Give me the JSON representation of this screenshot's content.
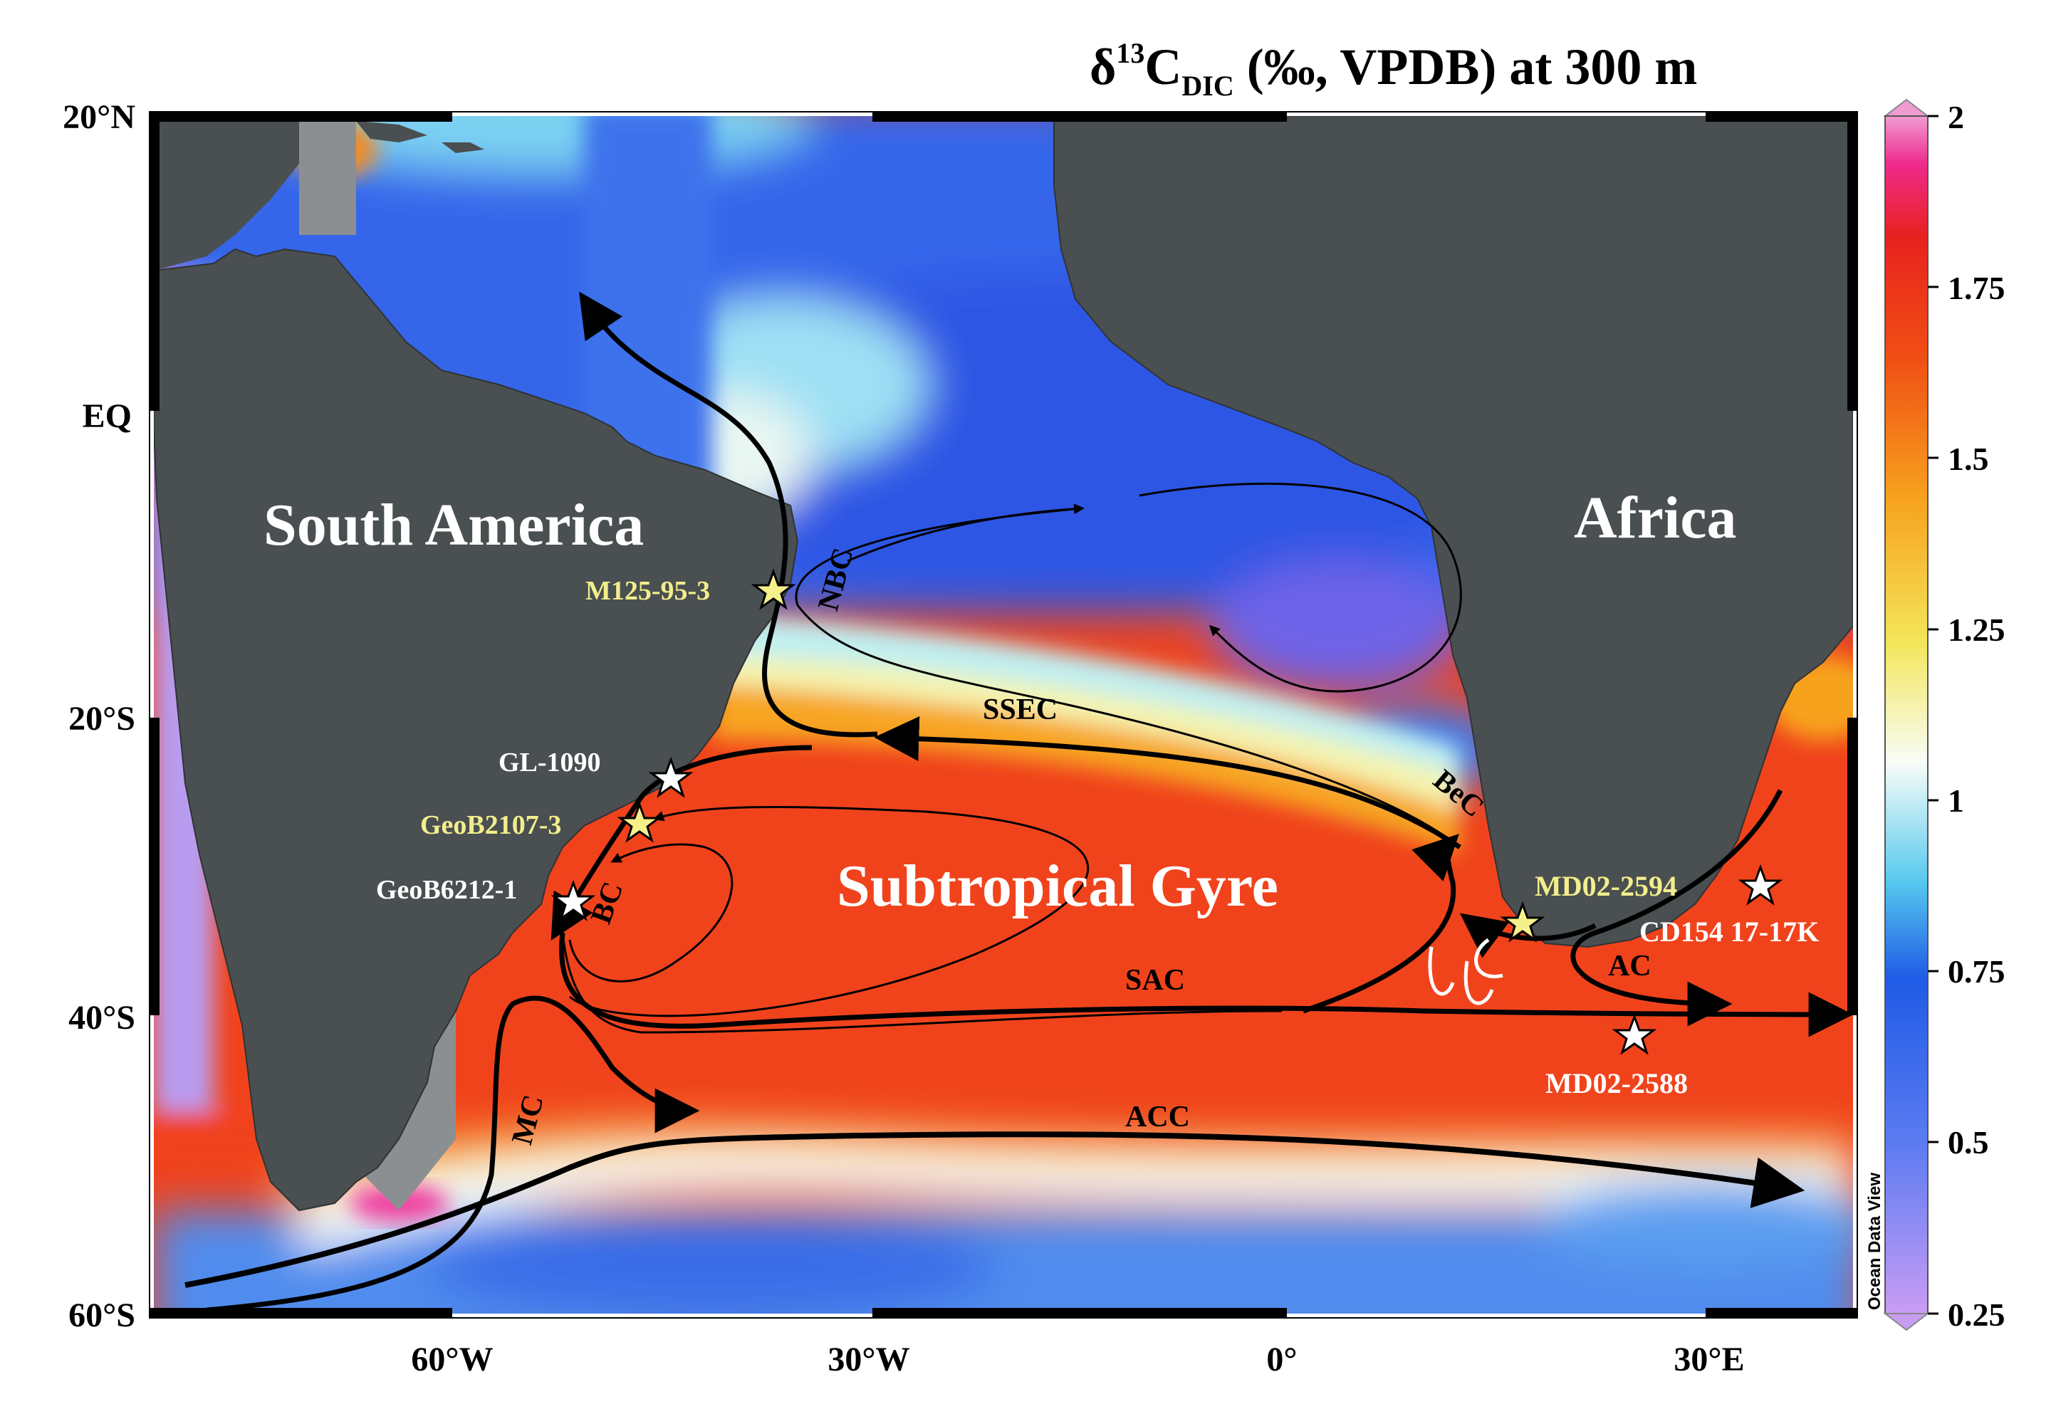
{
  "title": {
    "prefix": "δ",
    "superscript": "13",
    "symbol": "C",
    "subscript": "DIC",
    "suffix": " (‰, VPDB) at 300 m"
  },
  "lat_ticks": [
    "20°N",
    "EQ",
    "20°S",
    "40°S",
    "60°S"
  ],
  "lon_ticks": [
    "60°W",
    "30°W",
    "0°",
    "30°E"
  ],
  "colorbar": {
    "ticks": [
      "2",
      "1.75",
      "1.5",
      "1.25",
      "1",
      "0.75",
      "0.5",
      "0.25"
    ],
    "range": [
      0.25,
      2.0
    ],
    "colormap_stops": [
      "#c99cf4",
      "#5d7cf2",
      "#1f5be6",
      "#56c8ee",
      "#f8fdf8",
      "#f3e65a",
      "#f7a21e",
      "#f04d14",
      "#e8221e",
      "#ee2a8c",
      "#f09bd2"
    ]
  },
  "watermark": "Ocean Data View",
  "continents": {
    "south_america": "South America",
    "africa": "Africa"
  },
  "gyre_label": "Subtropical Gyre",
  "current_labels": {
    "nbc": "NBC",
    "ssec": "SSEC",
    "bec": "BeC",
    "bc": "BC",
    "sac": "SAC",
    "acc": "ACC",
    "ac": "AC",
    "mc": "MC"
  },
  "cores": [
    {
      "name": "M125-95-3",
      "highlight": true
    },
    {
      "name": "GL-1090",
      "highlight": false
    },
    {
      "name": "GeoB2107-3",
      "highlight": true
    },
    {
      "name": "GeoB6212-1",
      "highlight": false
    },
    {
      "name": "MD02-2594",
      "highlight": true
    },
    {
      "name": "CD154 17-17K",
      "highlight": false
    },
    {
      "name": "MD02-2588",
      "highlight": false
    }
  ],
  "colors": {
    "land": "#4a4f51",
    "highlight_label": "#f2ee8c",
    "white_label": "#ffffff",
    "arrow": "#000000",
    "star_highlight": "#f5f08a",
    "star_white": "#ffffff"
  }
}
